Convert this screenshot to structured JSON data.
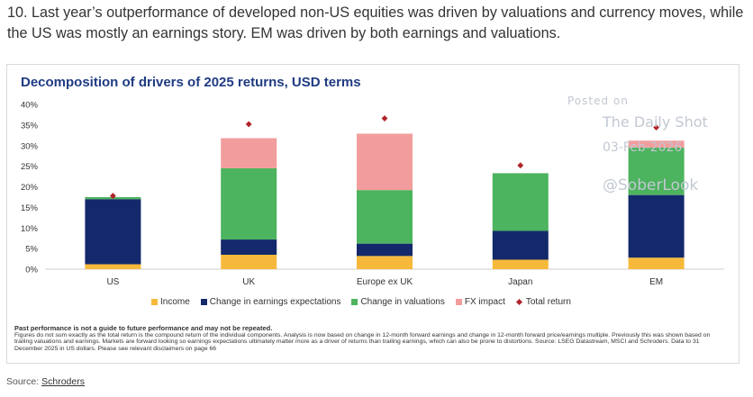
{
  "headline": "10. Last year’s outperformance of developed non-US equities was driven by valuations and currency moves, while the US was mostly an earnings story. EM was driven by both earnings and valuations.",
  "watermark": {
    "line1": "Posted on",
    "line2": "The Daily Shot",
    "line3": "03-Feb-2026",
    "line4": "@SoberLook"
  },
  "chart_data": {
    "type": "bar",
    "stacked": true,
    "title": "Decomposition of drivers of 2025 returns, USD terms",
    "categories": [
      "US",
      "UK",
      "Europe ex UK",
      "Japan",
      "EM"
    ],
    "ylim": [
      0,
      40
    ],
    "yticks": [
      0,
      5,
      10,
      15,
      20,
      25,
      30,
      35,
      40
    ],
    "ytick_labels": [
      "0%",
      "5%",
      "10%",
      "15%",
      "20%",
      "25%",
      "30%",
      "35%",
      "40%"
    ],
    "series": [
      {
        "name": "Income",
        "color": "#f6b93b",
        "values": [
          1.2,
          3.5,
          3.2,
          2.3,
          2.8
        ]
      },
      {
        "name": "Change in earnings expectations",
        "color": "#13296b",
        "values": [
          15.8,
          3.7,
          3.0,
          7.0,
          15.2
        ]
      },
      {
        "name": "Change in valuations",
        "color": "#4cb35e",
        "values": [
          0.5,
          17.3,
          13.0,
          14.0,
          11.5
        ]
      },
      {
        "name": "FX impact",
        "color": "#f29d9d",
        "values": [
          0.0,
          7.3,
          13.7,
          0.0,
          1.7
        ]
      }
    ],
    "total_return": {
      "name": "Total return",
      "color": "#b0242a",
      "values": [
        17.8,
        35.2,
        36.6,
        25.2,
        34.4
      ]
    },
    "legend_position": "bottom"
  },
  "disclaimer": {
    "bold": "Past performance is not a guide to future performance and may not be repeated.",
    "text": "Figures do not sum exactly as the total return is the compound return of the individual components. Analysis is now based on change in 12-month forward earnings and change in 12-month forward price/earnings multiple. Previously this was shown based on trailing valuations and earnings. Markets are forward looking so earnings expectations ultimately matter more as a driver of returns than trailing earnings, which can also be prone to distortions. Source: LSEG Datastream, MSCI and Schroders. Data to 31 December 2025 in US dollars. Please see relevant disclaimers on page 66"
  },
  "source": {
    "label": "Source:",
    "link": "Schroders"
  }
}
